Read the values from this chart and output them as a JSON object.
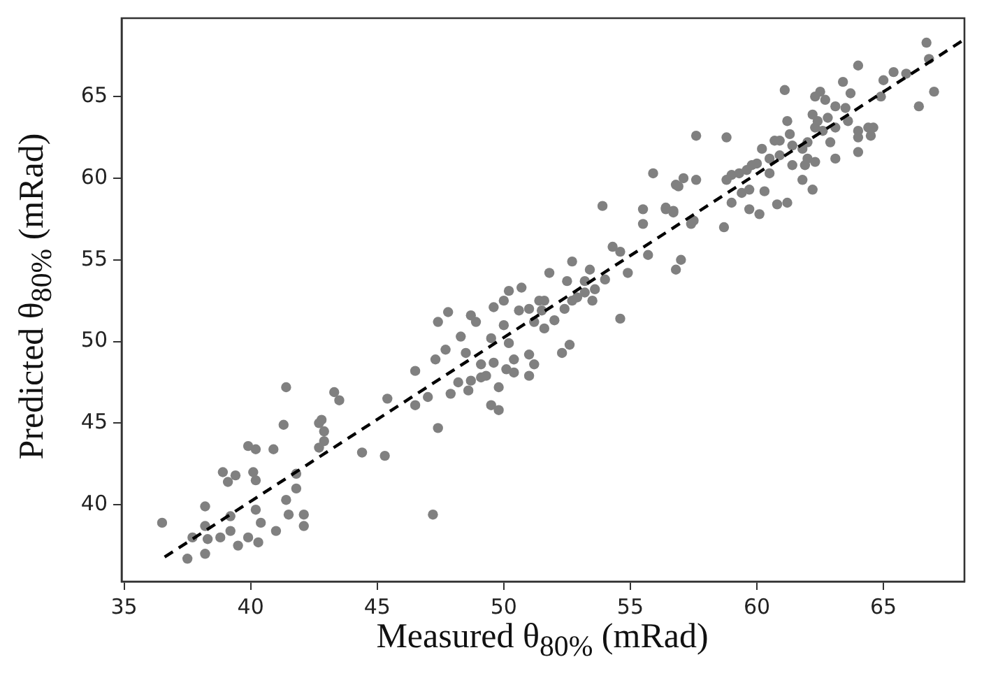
{
  "chart_data": {
    "type": "scatter",
    "xlabel": "Measured θ$_{80%}$ (mRad)",
    "ylabel": "Predicted θ$_{80%}$ (mRad)",
    "xlim": [
      34.9,
      68.2
    ],
    "ylim": [
      35.3,
      69.8
    ],
    "xticks": [
      35,
      40,
      45,
      50,
      55,
      60,
      65
    ],
    "yticks": [
      40,
      45,
      50,
      55,
      60,
      65
    ],
    "grid": false,
    "legend": false,
    "series": [
      {
        "color": "#808080",
        "marker": "circle",
        "x": [
          36.5,
          37.5,
          37.7,
          38.2,
          38.2,
          38.2,
          38.3,
          38.9,
          39.1,
          39.4,
          38.8,
          39.2,
          39.2,
          39.5,
          39.9,
          39.9,
          40.2,
          40.1,
          40.2,
          40.2,
          40.4,
          40.3,
          40.9,
          41.0,
          41.3,
          41.4,
          41.4,
          41.5,
          41.8,
          41.8,
          42.1,
          42.1,
          42.7,
          42.8,
          42.9,
          42.9,
          42.7,
          43.3,
          43.5,
          44.4,
          45.3,
          45.4,
          46.5,
          46.5,
          47.0,
          47.3,
          47.4,
          47.2,
          47.7,
          47.9,
          48.2,
          48.6,
          49.1,
          49.5,
          47.4,
          47.8,
          48.3,
          48.7,
          48.9,
          48.5,
          48.7,
          49.8,
          49.8,
          49.3,
          49.1,
          49.6,
          49.5,
          49.6,
          50.0,
          50.2,
          50.7,
          50.0,
          50.2,
          50.4,
          50.1,
          50.4,
          51.0,
          51.2,
          51.0,
          50.6,
          51.0,
          51.2,
          51.5,
          51.6,
          51.6,
          52.0,
          51.4,
          51.8,
          52.3,
          52.6,
          52.4,
          52.7,
          52.5,
          52.7,
          52.9,
          53.2,
          53.2,
          53.4,
          53.6,
          53.5,
          53.9,
          54.0,
          54.3,
          54.6,
          54.6,
          54.9,
          55.5,
          55.5,
          55.7,
          56.4,
          56.7,
          57.0,
          56.8,
          56.9,
          57.5,
          66.7,
          66.8,
          67.0,
          66.4,
          64.0,
          63.4,
          65.0,
          65.4,
          65.9,
          64.9,
          63.7,
          62.3,
          62.5,
          62.7,
          61.1,
          61.2,
          62.2,
          62.4,
          62.8,
          63.1,
          63.5,
          62.3,
          62.6,
          63.1,
          62.9,
          63.1,
          64.0,
          64.4,
          64.5,
          64.0,
          64.6,
          64.0,
          63.6,
          61.3,
          60.9,
          60.7,
          61.4,
          62.0,
          61.8,
          62.3,
          62.0,
          61.4,
          60.9,
          60.5,
          60.2,
          60.0,
          59.8,
          59.6,
          59.3,
          59.0,
          58.8,
          59.7,
          59.4,
          59.0,
          59.7,
          60.1,
          60.3,
          60.5,
          60.8,
          61.2,
          61.8,
          61.9,
          62.2,
          58.8,
          57.6,
          57.6,
          57.1,
          56.8,
          55.9,
          56.4,
          56.7,
          57.4,
          58.7
        ],
        "values": [
          38.9,
          36.7,
          38.0,
          39.9,
          38.7,
          37.0,
          37.9,
          42.0,
          41.4,
          41.8,
          38.0,
          38.4,
          39.3,
          37.5,
          38.0,
          43.6,
          43.4,
          42.0,
          41.5,
          39.7,
          38.9,
          37.7,
          43.4,
          38.4,
          44.9,
          47.2,
          40.3,
          39.4,
          41.9,
          41.0,
          39.4,
          38.7,
          45.0,
          45.2,
          44.5,
          43.9,
          43.5,
          46.9,
          46.4,
          43.2,
          43.0,
          46.5,
          48.2,
          46.1,
          46.6,
          48.9,
          44.7,
          39.4,
          49.5,
          46.8,
          47.5,
          47.0,
          47.8,
          46.1,
          51.2,
          51.8,
          50.3,
          51.6,
          51.2,
          49.3,
          47.6,
          45.8,
          47.2,
          47.9,
          48.6,
          48.7,
          50.2,
          52.1,
          52.5,
          53.1,
          53.3,
          51.0,
          49.9,
          48.9,
          48.3,
          48.1,
          47.9,
          48.6,
          49.2,
          51.9,
          52.0,
          51.2,
          51.9,
          52.5,
          50.8,
          51.3,
          52.5,
          54.2,
          49.3,
          49.8,
          52.0,
          52.5,
          53.7,
          54.9,
          52.7,
          53.0,
          53.7,
          54.4,
          53.2,
          52.5,
          58.3,
          53.8,
          55.8,
          55.5,
          51.4,
          54.2,
          58.1,
          57.2,
          55.3,
          58.1,
          58.0,
          55.0,
          54.4,
          59.5,
          57.4,
          68.3,
          67.3,
          65.3,
          64.4,
          66.9,
          65.9,
          66.0,
          66.5,
          66.4,
          65.0,
          65.2,
          65.0,
          65.3,
          64.8,
          65.4,
          63.5,
          63.9,
          63.5,
          63.7,
          64.4,
          64.3,
          63.1,
          62.9,
          63.1,
          62.2,
          61.2,
          62.9,
          63.1,
          62.6,
          62.5,
          63.1,
          61.6,
          63.5,
          62.7,
          62.3,
          62.3,
          62.0,
          62.2,
          61.8,
          61.0,
          61.2,
          60.8,
          61.4,
          61.2,
          61.8,
          60.9,
          60.8,
          60.5,
          60.3,
          60.2,
          59.9,
          59.3,
          59.1,
          58.5,
          58.1,
          57.8,
          59.2,
          60.3,
          58.4,
          58.5,
          59.9,
          60.8,
          59.3,
          62.5,
          62.6,
          59.9,
          60.0,
          59.6,
          60.3,
          58.2,
          57.9,
          57.2,
          57.0
        ]
      },
      {
        "type": "line",
        "color": "#000000",
        "marker": "none",
        "line_style": "dashed",
        "x": [
          36.6,
          68.1
        ],
        "values": [
          36.8,
          68.4
        ]
      }
    ]
  }
}
